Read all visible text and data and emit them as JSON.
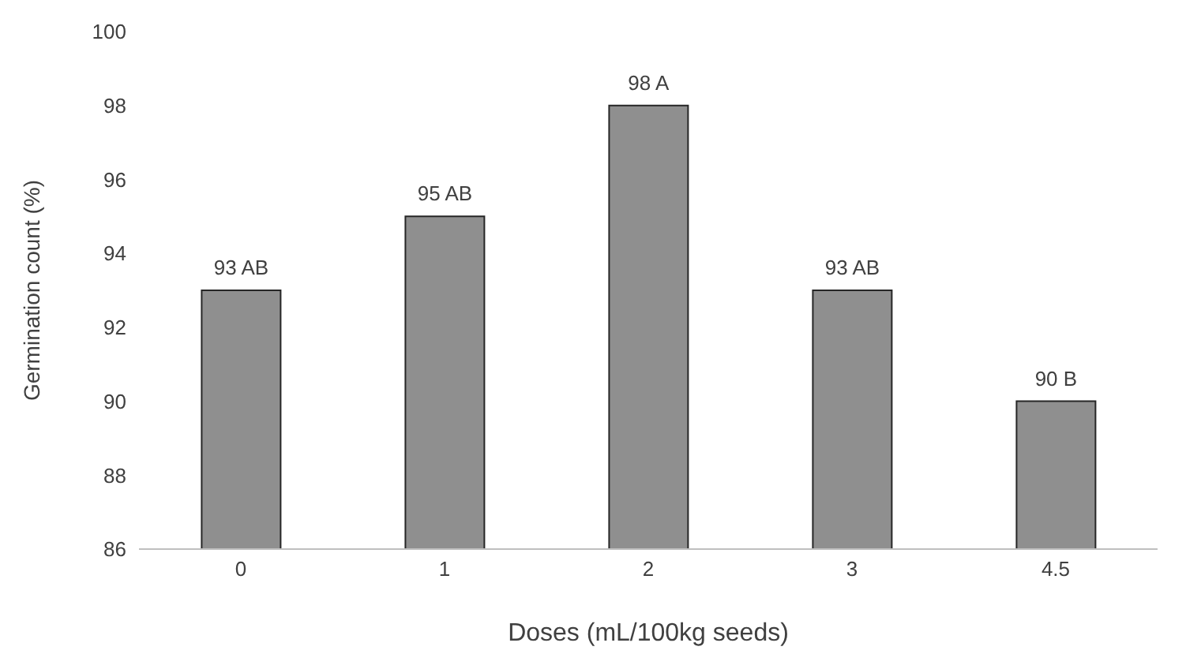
{
  "chart_data": {
    "type": "bar",
    "xlabel": "Doses (mL/100kg seeds)",
    "ylabel": "Germination count (%)",
    "categories": [
      "0",
      "1",
      "2",
      "3",
      "4.5"
    ],
    "values": [
      93,
      95,
      98,
      93,
      90
    ],
    "value_labels": [
      "93 AB",
      "95 AB",
      "98 A",
      "93 AB",
      "90 B"
    ],
    "color": "#8f8f8f",
    "ylim": [
      86,
      100
    ],
    "yticks": [
      86,
      88,
      90,
      92,
      94,
      96,
      98,
      100
    ],
    "grid": false
  }
}
